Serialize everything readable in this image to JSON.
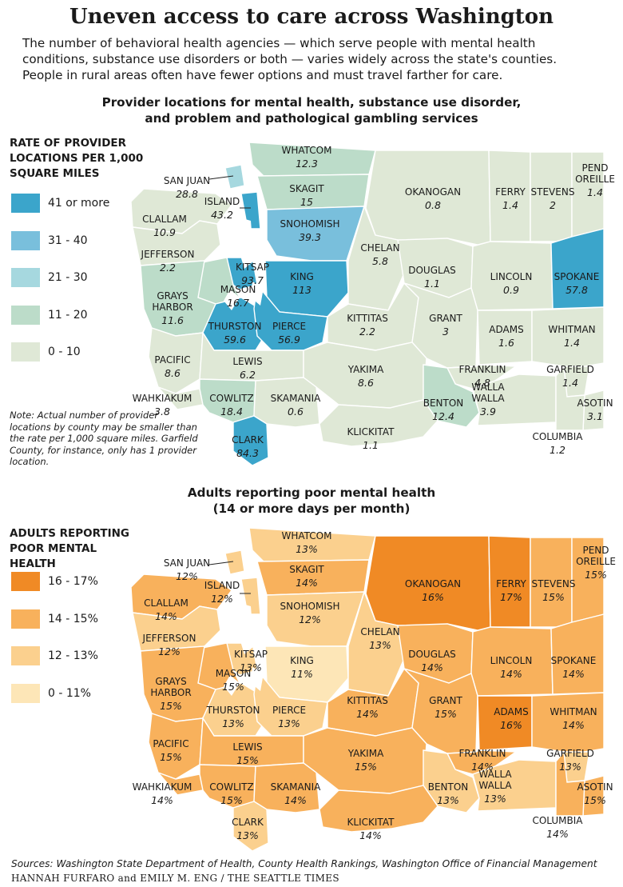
{
  "headline": "Uneven access to care across Washington",
  "dek": "The number of behavioral health agencies — which serve people with mental health conditions, substance use disorders or both — varies widely across the state's counties. People in rural areas often have fewer options and must travel farther for care.",
  "map1": {
    "title_line1": "Provider locations for mental health, substance use disorder,",
    "title_line2": "and problem and pathological gambling services",
    "legend_title": "RATE OF PROVIDER LOCATIONS PER 1,000 SQUARE MILES",
    "legend": [
      {
        "label": "41 or more",
        "color": "#3ba5cb"
      },
      {
        "label": "31 - 40",
        "color": "#79bfdc"
      },
      {
        "label": "21 - 30",
        "color": "#a6d8df"
      },
      {
        "label": "11 - 20",
        "color": "#bcdcc9"
      },
      {
        "label": "0 - 10",
        "color": "#dfe8d6"
      }
    ],
    "note": "Note: Actual number of provider locations by county may be smaller than the rate per 1,000 square miles. Garfield County, for instance, only has 1 provider location.",
    "values": {
      "WHATCOM": "12.3",
      "SAN JUAN": "28.8",
      "ISLAND": "43.2",
      "SKAGIT": "15",
      "OKANOGAN": "0.8",
      "FERRY": "1.4",
      "STEVENS": "2",
      "PEND OREILLE": "1.4",
      "CLALLAM": "10.9",
      "SNOHOMISH": "39.3",
      "JEFFERSON": "2.2",
      "CHELAN": "5.8",
      "KITSAP": "93.7",
      "KING": "113",
      "DOUGLAS": "1.1",
      "LINCOLN": "0.9",
      "SPOKANE": "57.8",
      "MASON": "16.7",
      "GRAYS HARBOR": "11.6",
      "THURSTON": "59.6",
      "PIERCE": "56.9",
      "KITTITAS": "2.2",
      "GRANT": "3",
      "ADAMS": "1.6",
      "WHITMAN": "1.4",
      "PACIFIC": "8.6",
      "LEWIS": "6.2",
      "YAKIMA": "8.6",
      "FRANKLIN": "4.8",
      "GARFIELD": "1.4",
      "WAHKIAKUM": "3.8",
      "COWLITZ": "18.4",
      "SKAMANIA": "0.6",
      "BENTON": "12.4",
      "WALLA WALLA": "3.9",
      "ASOTIN": "3.1",
      "KLICKITAT": "1.1",
      "COLUMBIA": "1.2",
      "CLARK": "84.3"
    }
  },
  "map2": {
    "title_line1": "Adults reporting poor mental health",
    "title_line2": "(14 or more days per month)",
    "legend_title": "ADULTS REPORTING POOR MENTAL HEALTH",
    "legend": [
      {
        "label": "16 - 17%",
        "color": "#f08a25"
      },
      {
        "label": "14 - 15%",
        "color": "#f8b15c"
      },
      {
        "label": "12 - 13%",
        "color": "#fbd08e"
      },
      {
        "label": "0 - 11%",
        "color": "#fde6b7"
      }
    ],
    "values": {
      "WHATCOM": "13%",
      "SAN JUAN": "12%",
      "ISLAND": "12%",
      "SKAGIT": "14%",
      "OKANOGAN": "16%",
      "FERRY": "17%",
      "STEVENS": "15%",
      "PEND OREILLE": "15%",
      "CLALLAM": "14%",
      "SNOHOMISH": "12%",
      "JEFFERSON": "12%",
      "CHELAN": "13%",
      "KITSAP": "13%",
      "KING": "11%",
      "DOUGLAS": "14%",
      "LINCOLN": "14%",
      "SPOKANE": "14%",
      "MASON": "15%",
      "GRAYS HARBOR": "15%",
      "THURSTON": "13%",
      "PIERCE": "13%",
      "KITTITAS": "14%",
      "GRANT": "15%",
      "ADAMS": "16%",
      "WHITMAN": "14%",
      "PACIFIC": "15%",
      "LEWIS": "15%",
      "YAKIMA": "15%",
      "FRANKLIN": "14%",
      "GARFIELD": "13%",
      "WAHKIAKUM": "14%",
      "COWLITZ": "15%",
      "SKAMANIA": "14%",
      "BENTON": "13%",
      "WALLA WALLA": "13%",
      "ASOTIN": "15%",
      "KLICKITAT": "14%",
      "COLUMBIA": "14%",
      "CLARK": "13%"
    }
  },
  "sources": "Sources: Washington State Department of Health, County Health Rankings, Washington Office of Financial Management",
  "credit": "HANNAH FURFARO and EMILY M. ENG / THE SEATTLE TIMES"
}
